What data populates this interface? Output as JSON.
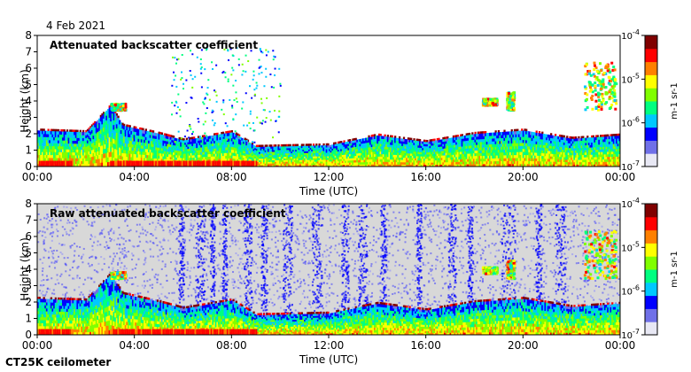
{
  "date_label": "4 Feb 2021",
  "footer_label": "CT25K ceilometer",
  "colors": {
    "clear_bg": "#ffffff",
    "noise_bg": "#d8d8d8",
    "colormap": [
      "#e8e8f4",
      "#7070e8",
      "#0000ff",
      "#00c8ff",
      "#00ff80",
      "#80ff00",
      "#ffff00",
      "#ff8000",
      "#ff0000",
      "#800000"
    ]
  },
  "chart_data": [
    {
      "type": "heatmap",
      "title": "Attenuated backscatter coefficient",
      "xlabel": "Time (UTC)",
      "ylabel": "Height (km)",
      "xticks": [
        "00:00",
        "04:00",
        "08:00",
        "12:00",
        "16:00",
        "20:00",
        "00:00"
      ],
      "yticks": [
        "0",
        "1",
        "2",
        "3",
        "4",
        "5",
        "6",
        "7",
        "8"
      ],
      "xlim": [
        0,
        24
      ],
      "ylim": [
        0,
        8
      ],
      "background": "clear",
      "colorbar": {
        "ticks": [
          "10^-7",
          "10^-6",
          "10^-5",
          "10^-4"
        ],
        "label": "m^-1 sr^-1",
        "range": [
          -7,
          -4
        ]
      },
      "cloud_base_profile": [
        [
          0,
          2.2
        ],
        [
          2,
          2.1
        ],
        [
          3,
          3.7
        ],
        [
          3.5,
          2.5
        ],
        [
          5,
          2.0
        ],
        [
          6,
          1.6
        ],
        [
          8,
          2.1
        ],
        [
          9,
          1.2
        ],
        [
          12,
          1.3
        ],
        [
          14,
          1.9
        ],
        [
          16,
          1.5
        ],
        [
          18,
          2.0
        ],
        [
          20,
          2.2
        ],
        [
          22,
          1.7
        ],
        [
          24,
          1.9
        ]
      ]
    },
    {
      "type": "heatmap",
      "title": "Raw attenuated backscatter coefficient",
      "xlabel": "Time (UTC)",
      "ylabel": "Height (km)",
      "xticks": [
        "00:00",
        "04:00",
        "08:00",
        "12:00",
        "16:00",
        "20:00",
        "00:00"
      ],
      "yticks": [
        "0",
        "1",
        "2",
        "3",
        "4",
        "5",
        "6",
        "7",
        "8"
      ],
      "xlim": [
        0,
        24
      ],
      "ylim": [
        0,
        8
      ],
      "background": "noise",
      "colorbar": {
        "ticks": [
          "10^-7",
          "10^-6",
          "10^-5",
          "10^-4"
        ],
        "label": "m^-1 sr^-1",
        "range": [
          -7,
          -4
        ]
      },
      "cloud_base_profile": [
        [
          0,
          2.2
        ],
        [
          2,
          2.1
        ],
        [
          3,
          3.7
        ],
        [
          3.5,
          2.5
        ],
        [
          5,
          2.0
        ],
        [
          6,
          1.6
        ],
        [
          8,
          2.1
        ],
        [
          9,
          1.2
        ],
        [
          12,
          1.3
        ],
        [
          14,
          1.9
        ],
        [
          16,
          1.5
        ],
        [
          18,
          2.0
        ],
        [
          20,
          2.2
        ],
        [
          22,
          1.7
        ],
        [
          24,
          1.9
        ]
      ]
    }
  ]
}
